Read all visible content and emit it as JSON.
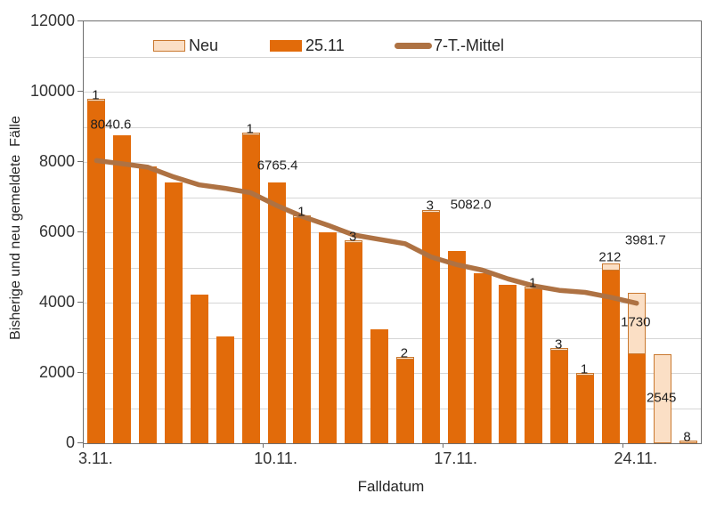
{
  "axes": {
    "y_title": "Bisherige und neu gemeldete  Fälle",
    "x_title": "Falldatum",
    "y_tick_labels": [
      "0",
      "2000",
      "4000",
      "6000",
      "8000",
      "10000",
      "12000"
    ],
    "x_tick_labels": [
      "3.11.",
      "10.11.",
      "17.11.",
      "24.11."
    ]
  },
  "legend": {
    "items": [
      {
        "label": "Neu",
        "swatch": "light-bar-swatch"
      },
      {
        "label": "25.11",
        "swatch": "dark-bar-swatch"
      },
      {
        "label": "7-T.-Mittel",
        "swatch": "line-swatch"
      }
    ]
  },
  "colors": {
    "bar_dark": "#E26B0A",
    "bar_light": "#FBDFC5",
    "bar_light_border": "#C9782F",
    "line": "#AE7243",
    "gridline": "#D6D6D6",
    "axis": "#6E6E6E",
    "text": "#262626"
  },
  "chart_data": {
    "type": "bar",
    "subtype": "stacked-bars-with-line-overlay",
    "title": "",
    "xlabel": "Falldatum",
    "ylabel": "Bisherige und neu gemeldete  Fälle",
    "ylim": [
      0,
      12000
    ],
    "ytick_step": 2000,
    "grid_step": 1000,
    "grid": "on",
    "legend_position": "top",
    "categories": [
      "3.11.",
      "4.11.",
      "5.11.",
      "6.11.",
      "7.11.",
      "8.11.",
      "9.11.",
      "10.11.",
      "11.11.",
      "12.11.",
      "13.11.",
      "14.11.",
      "15.11.",
      "16.11.",
      "17.11.",
      "18.11.",
      "19.11.",
      "20.11.",
      "21.11.",
      "22.11.",
      "23.11.",
      "24.11.",
      "25.11.",
      "26.11."
    ],
    "xticks_shown_at": [
      "3.11.",
      "10.11.",
      "17.11.",
      "24.11."
    ],
    "series": [
      {
        "name": "25.11",
        "type": "bar",
        "role": "stack-base",
        "values": [
          9730,
          8750,
          7880,
          7420,
          4230,
          3030,
          8750,
          7420,
          6400,
          5990,
          5700,
          3230,
          2380,
          6570,
          5460,
          4830,
          4510,
          4370,
          2640,
          1920,
          4900,
          2545,
          0,
          0
        ]
      },
      {
        "name": "Neu",
        "type": "bar",
        "role": "stack-top",
        "show_labels_when_nonzero": true,
        "values": [
          1,
          0,
          0,
          0,
          0,
          0,
          1,
          0,
          1,
          0,
          3,
          0,
          2,
          3,
          0,
          0,
          0,
          1,
          3,
          1,
          212,
          1730,
          2545,
          8
        ]
      },
      {
        "name": "7-T.-Mittel",
        "type": "line",
        "values": [
          8040.6,
          7950,
          7850,
          7575,
          7350,
          7250,
          7125,
          6765.4,
          6450,
          6200,
          5925,
          5800,
          5675,
          5300,
          5082,
          4925,
          4675,
          4475,
          4350,
          4290,
          4150,
          3981.7,
          null,
          null
        ],
        "point_labels": [
          {
            "category": "3.11.",
            "text": "8040.6"
          },
          {
            "category": "10.11.",
            "text": "6765.4"
          },
          {
            "category": "17.11.",
            "text": "5082.0"
          },
          {
            "category": "24.11.",
            "text": "3981.7"
          }
        ]
      }
    ]
  }
}
